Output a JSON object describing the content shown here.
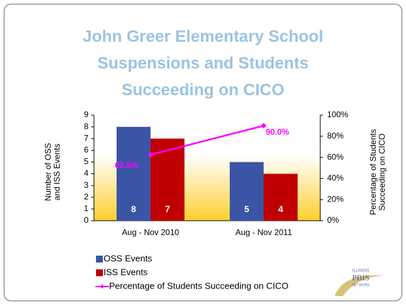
{
  "chart_data": {
    "type": "bar",
    "title": "John Greer Elementary School Suspensions and Students Succeeding on CICO",
    "y_label": "Number of OSS and ISS Events",
    "y2_label": "Percentage of Students Succeeding on CICO",
    "categories": [
      "Aug - Nov 2010",
      "Aug - Nov 2011"
    ],
    "series": [
      {
        "name": "OSS Events",
        "type": "bar",
        "color": "#3a55a6",
        "values": [
          8,
          5
        ]
      },
      {
        "name": "ISS Events",
        "type": "bar",
        "color": "#c00000",
        "values": [
          7,
          4
        ]
      },
      {
        "name": "Percentage of Students Succeeding on CICO",
        "type": "line",
        "axis": "y2",
        "color": "#ff00ff",
        "values": [
          62.5,
          90.0
        ],
        "value_labels": [
          "62.5%",
          "90.0%"
        ]
      }
    ],
    "ylim": [
      0,
      9
    ],
    "yticks": [
      0,
      1,
      2,
      3,
      4,
      5,
      6,
      7,
      8,
      9
    ],
    "y2lim": [
      0,
      100
    ],
    "y2ticks": [
      {
        "value": 0,
        "label": "0%"
      },
      {
        "value": 20,
        "label": "20%"
      },
      {
        "value": 40,
        "label": "40%"
      },
      {
        "value": 60,
        "label": "60%"
      },
      {
        "value": 80,
        "label": "80%"
      },
      {
        "value": 100,
        "label": "100%"
      }
    ],
    "grid": false,
    "legend": "bottom-left"
  },
  "logo": {
    "top": "ILLINOIS",
    "main": "PBIS",
    "bottom": "NETWORK"
  }
}
